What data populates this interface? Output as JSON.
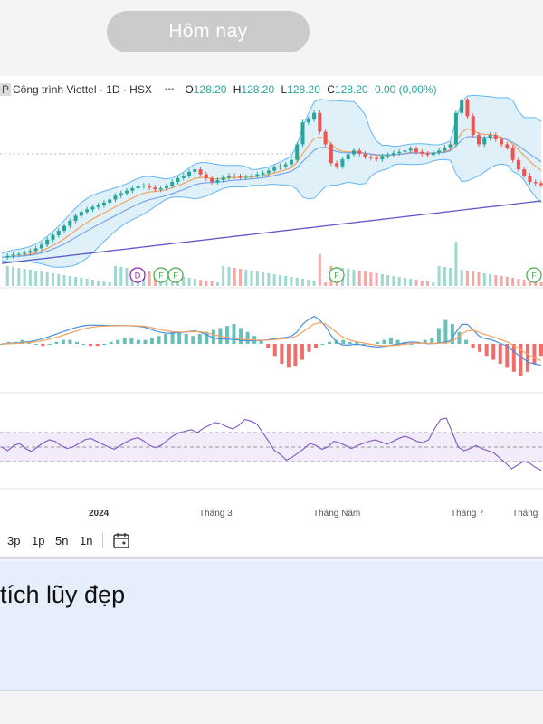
{
  "today_button": "Hôm nay",
  "header": {
    "symbol_fragment": "P",
    "title": "Công trình Viettel · 1D · HSX",
    "open_label": "O",
    "open": "128.20",
    "high_label": "H",
    "high": "128.20",
    "low_label": "L",
    "low": "128.20",
    "close_label": "C",
    "close": "128.20",
    "change": "0.00 (0,00%)"
  },
  "toolbar": {
    "tf1": "3p",
    "tf2": "1p",
    "tf3": "5n",
    "tf4": "1n",
    "calendar_icon": "calendar-icon"
  },
  "post_text": "tích lũy đẹp",
  "colors": {
    "up": "#26a69a",
    "down": "#ef5350",
    "bb_fill": "#dff0f8",
    "bb_line": "#64b5f6",
    "ema_orange": "#f4a261",
    "ma_long": "#5c59c9",
    "rsi": "#7e57c2",
    "rsi_band": "#f1ebfa"
  },
  "chart_data": {
    "type": "candlestick",
    "x_tick_labels": [
      "2024",
      "Tháng 3",
      "Tháng Năm",
      "Tháng 7",
      "Tháng"
    ],
    "price": [
      20,
      22,
      24,
      25,
      27,
      30,
      34,
      40,
      48,
      55,
      62,
      70,
      78,
      86,
      92,
      96,
      100,
      103,
      107,
      112,
      118,
      122,
      126,
      130,
      133,
      134,
      131,
      128,
      130,
      134,
      140,
      146,
      150,
      156,
      160,
      152,
      146,
      140,
      143,
      147,
      150,
      149,
      147,
      148,
      150,
      152,
      154,
      158,
      163,
      165,
      168,
      175,
      200,
      235,
      240,
      250,
      220,
      200,
      170,
      165,
      176,
      184,
      190,
      185,
      180,
      178,
      176,
      181,
      183,
      186,
      188,
      190,
      193,
      188,
      185,
      183,
      187,
      190,
      195,
      200,
      250,
      270,
      245,
      215,
      200,
      210,
      215,
      208,
      200,
      195,
      175,
      160,
      150,
      140,
      138,
      135
    ],
    "events": [
      {
        "label": "D",
        "color": "#9c27b0"
      },
      {
        "label": "F",
        "color": "#4caf50"
      },
      {
        "label": "F",
        "color": "#4caf50"
      },
      {
        "label": "F",
        "color": "#4caf50"
      },
      {
        "label": "F",
        "color": "#4caf50"
      }
    ],
    "rsi_levels": [
      70,
      50,
      30
    ],
    "rsi": [
      50,
      45,
      52,
      55,
      48,
      44,
      50,
      56,
      60,
      58,
      52,
      48,
      50,
      55,
      60,
      62,
      58,
      54,
      50,
      47,
      52,
      57,
      61,
      63,
      58,
      52,
      49,
      53,
      60,
      66,
      70,
      72,
      74,
      70,
      76,
      80,
      84,
      82,
      78,
      75,
      80,
      88,
      86,
      82,
      70,
      58,
      45,
      40,
      32,
      36,
      42,
      48,
      55,
      52,
      47,
      50,
      58,
      56,
      52,
      48,
      52,
      55,
      58,
      60,
      57,
      54,
      58,
      62,
      65,
      62,
      58,
      56,
      60,
      75,
      88,
      90,
      70,
      50,
      45,
      48,
      52,
      48,
      45,
      42,
      35,
      28,
      20,
      25,
      30,
      28,
      22,
      18
    ],
    "macd_hist": [
      0,
      1,
      1,
      2,
      1,
      0,
      -1,
      0,
      1,
      2,
      2,
      1,
      0,
      -1,
      -1,
      0,
      1,
      2,
      3,
      3,
      2,
      2,
      3,
      4,
      5,
      6,
      6,
      5,
      4,
      5,
      6,
      7,
      8,
      9,
      10,
      8,
      6,
      4,
      2,
      -2,
      -6,
      -10,
      -12,
      -11,
      -8,
      -4,
      -2,
      0,
      1,
      2,
      2,
      1,
      1,
      0,
      0,
      1,
      2,
      3,
      2,
      1,
      0,
      1,
      2,
      3,
      8,
      12,
      10,
      6,
      2,
      -2,
      -4,
      -6,
      -8,
      -10,
      -12,
      -14,
      -16,
      -14,
      -10,
      -6
    ]
  }
}
